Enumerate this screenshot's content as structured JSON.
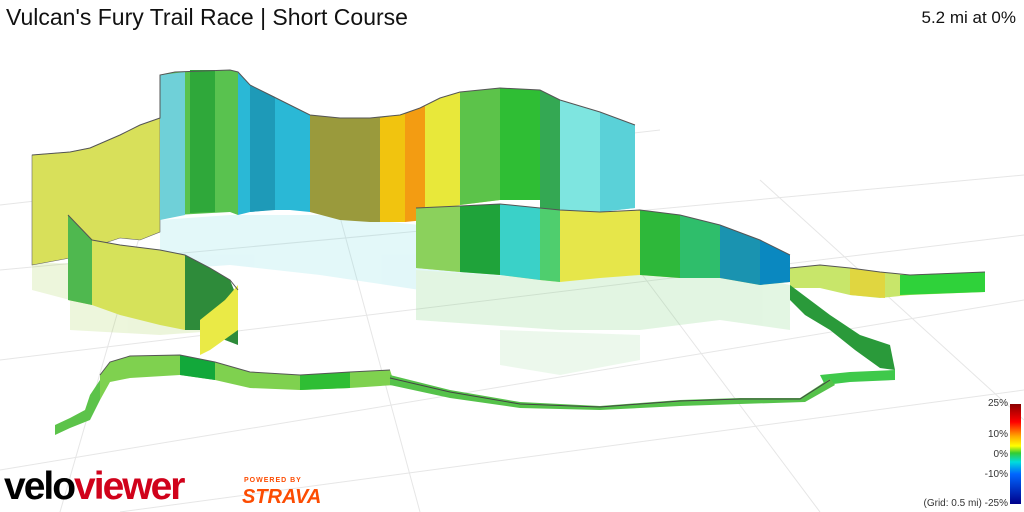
{
  "header": {
    "title": "Vulcan's Fury Trail Race | Short Course",
    "summary": "5.2 mi at 0%"
  },
  "legend": {
    "ticks": [
      "25%",
      "10%",
      "0%",
      "-10%",
      "-25%"
    ],
    "grid_note": "(Grid: 0.5 mi)"
  },
  "branding": {
    "velo": "velo",
    "viewer": "viewer",
    "powered_by": "POWERED BY",
    "strava": "STRAVA"
  },
  "colors": {
    "velo_black": "#000000",
    "viewer_red": "#d0021b",
    "strava_orange": "#fc4c02"
  }
}
